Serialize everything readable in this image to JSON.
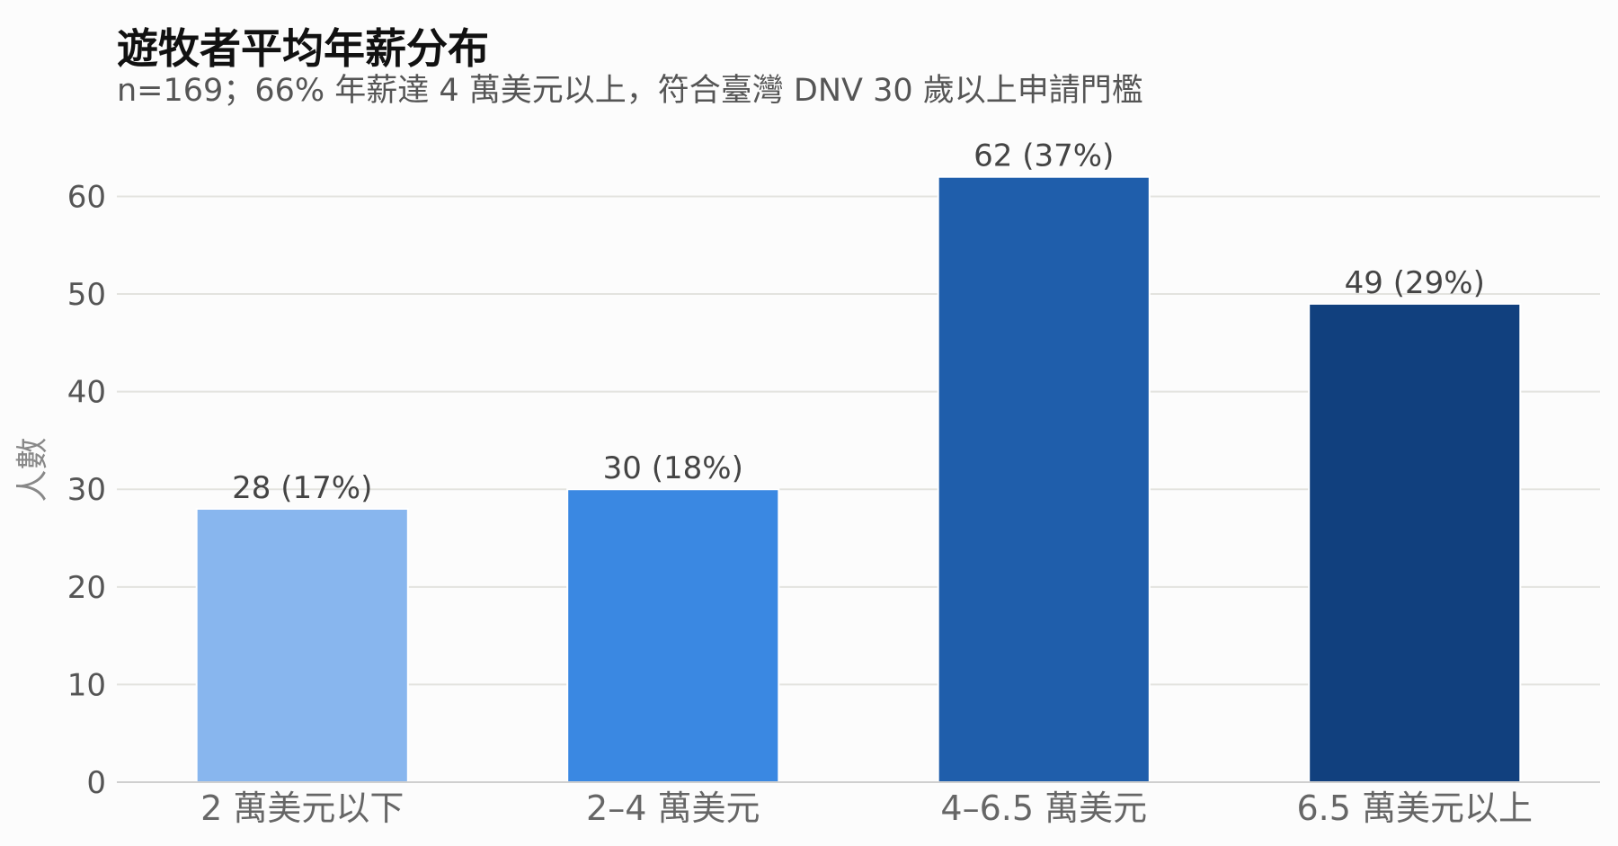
{
  "chart_data": {
    "type": "bar",
    "title": "遊牧者平均年薪分布",
    "subtitle": "n=169；66% 年薪達 4 萬美元以上，符合臺灣 DNV 30 歲以上申請門檻",
    "ylabel": "人數",
    "xlabel": "",
    "categories": [
      "2 萬美元以下",
      "2–4 萬美元",
      "4–6.5 萬美元",
      "6.5 萬美元以上"
    ],
    "values": [
      28,
      30,
      62,
      49
    ],
    "data_labels": [
      "28 (17%)",
      "30 (18%)",
      "62 (37%)",
      "49 (29%)"
    ],
    "colors": [
      "#88b6ee",
      "#3a88e2",
      "#1f5eab",
      "#11407e"
    ],
    "ylim": [
      0,
      64
    ],
    "yticks": [
      0,
      10,
      20,
      30,
      40,
      50,
      60
    ],
    "grid": true,
    "grid_color": "#e3e3df",
    "axis_color": "#cfcfcf"
  }
}
